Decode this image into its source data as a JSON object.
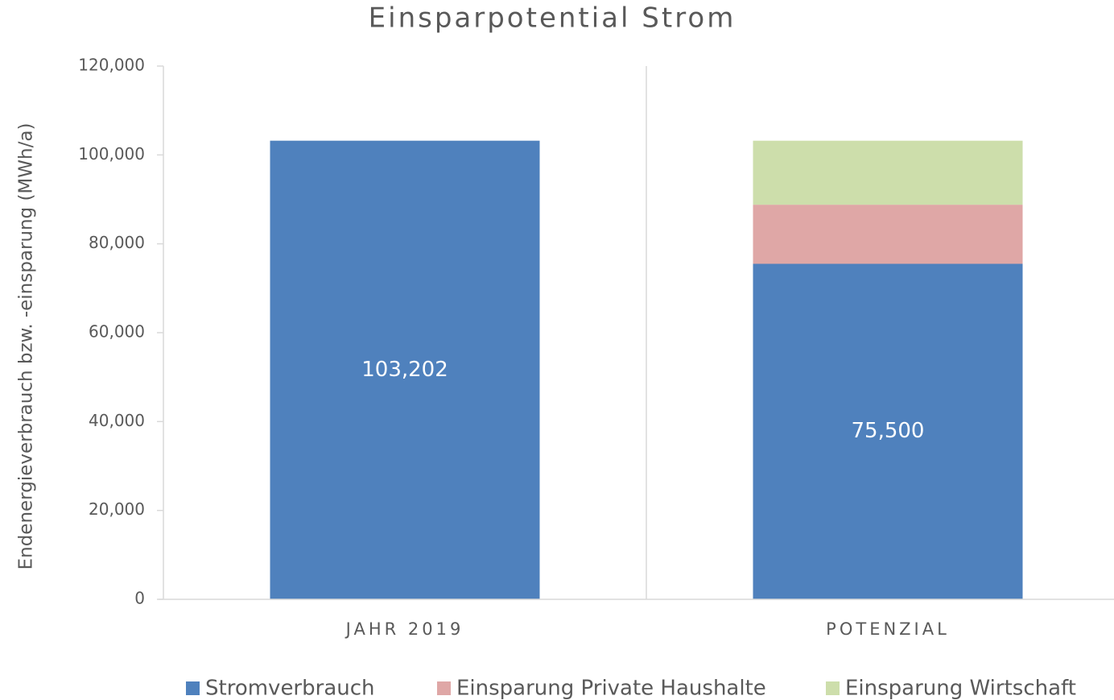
{
  "chart_data": {
    "type": "stacked_bar",
    "title": "Einsparpotential Strom",
    "y_axis_label": "Endenergieverbrauch bzw. -einsparung (MWh/a)",
    "categories": [
      "JAHR 2019",
      "POTENZIAL"
    ],
    "series": [
      {
        "name": "Stromverbrauch",
        "color": "#4f81bd",
        "values": [
          103202,
          75500
        ],
        "value_labels": [
          "103,202",
          "75,500"
        ]
      },
      {
        "name": "Einsparung Private Haushalte",
        "color": "#dfa7a6",
        "values": [
          null,
          13300
        ]
      },
      {
        "name": "Einsparung Wirtschaft",
        "color": "#cddeab",
        "values": [
          null,
          14400
        ]
      }
    ],
    "ylim": [
      0,
      120000
    ],
    "yticks": [
      0,
      {
        "value": 20000,
        "label": "20,000"
      },
      {
        "value": 40000,
        "label": "40,000"
      },
      {
        "value": 60000,
        "label": "60,000"
      },
      {
        "value": 80000,
        "label": "80,000"
      },
      {
        "value": 100000,
        "label": "100,000"
      },
      {
        "value": 120000,
        "label": "120,000"
      }
    ],
    "grid": false,
    "legend": "bottom"
  }
}
